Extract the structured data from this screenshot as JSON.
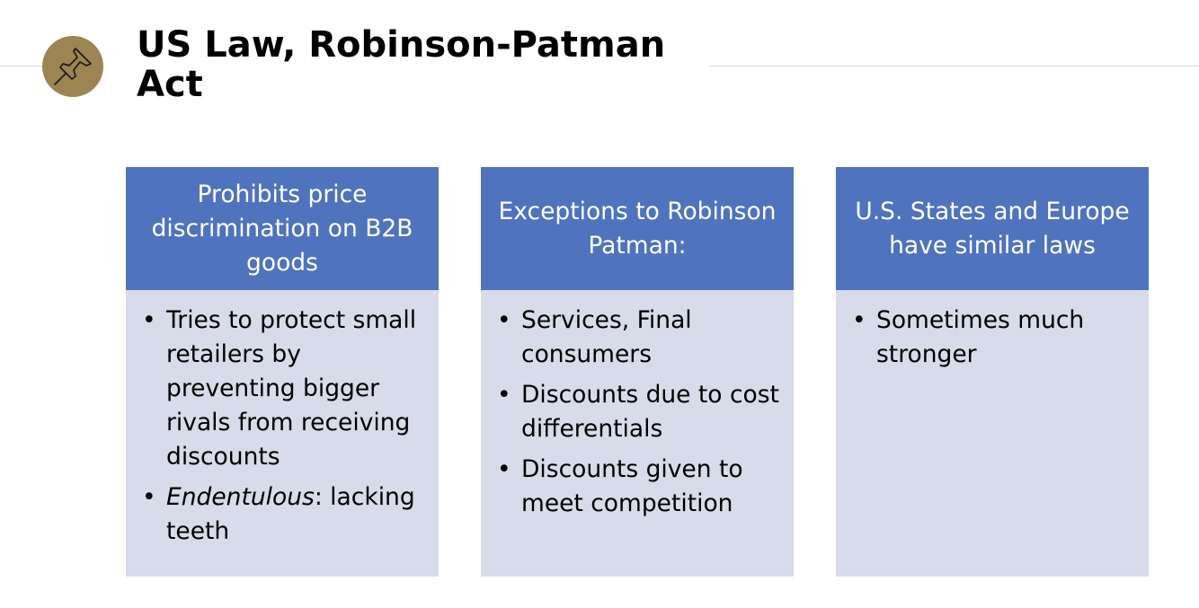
{
  "slide": {
    "title": "US Law, Robinson-Patman Act",
    "icon": "pushpin-icon",
    "colors": {
      "accent_badge": "#9c8553",
      "header_fill": "#4f73bd",
      "body_fill": "#d7dbea"
    }
  },
  "columns": [
    {
      "header": "Prohibits price discrimination on B2B goods",
      "bullets": [
        {
          "text": "Tries to protect small retailers by preventing bigger rivals from receiving discounts"
        },
        {
          "term": "Endentulous",
          "text": ": lacking teeth"
        }
      ]
    },
    {
      "header": "Exceptions to Robinson Patman:",
      "bullets": [
        {
          "text": "Services, Final consumers"
        },
        {
          "text": "Discounts due to cost differentials"
        },
        {
          "text": "Discounts given to meet competition"
        }
      ]
    },
    {
      "header": "U.S. States and Europe have similar laws",
      "bullets": [
        {
          "text": "Sometimes much stronger"
        }
      ]
    }
  ]
}
